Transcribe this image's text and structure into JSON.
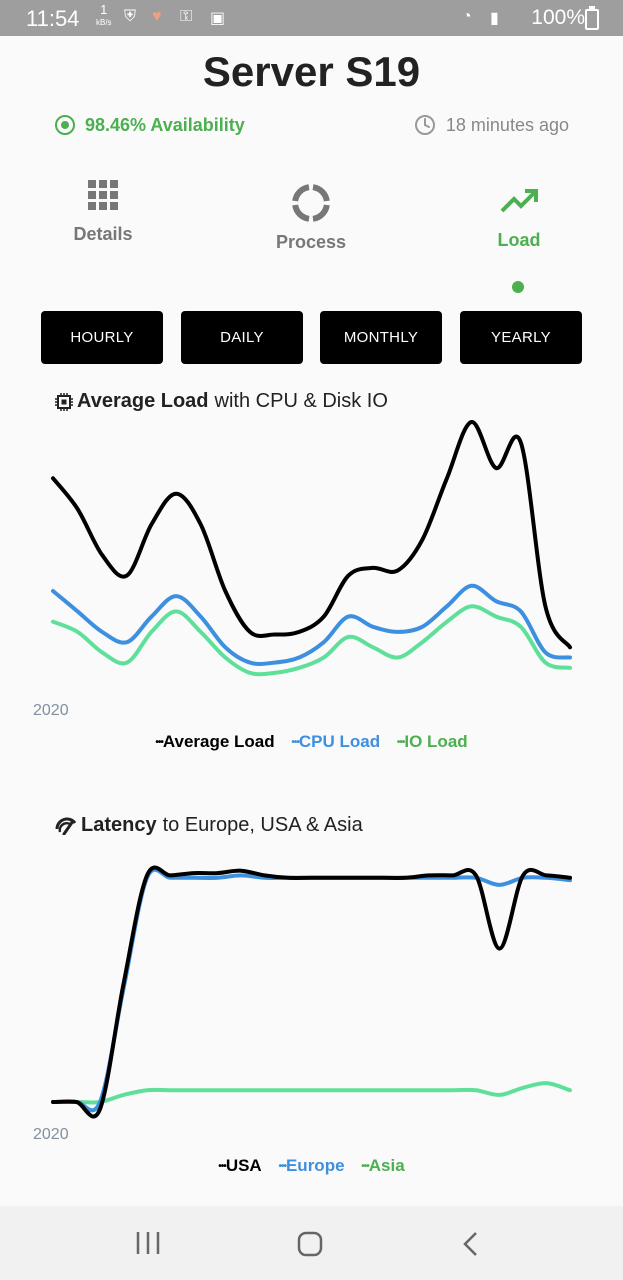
{
  "status_bar": {
    "time": "11:54",
    "data_rate": "1",
    "data_unit": "kB/s",
    "battery": "100%"
  },
  "header": {
    "title": "Server S19",
    "availability": "98.46% Availability",
    "updated": "18 minutes ago"
  },
  "tabs": [
    {
      "label": "Details",
      "icon": "grid-icon"
    },
    {
      "label": "Process",
      "icon": "donut-icon"
    },
    {
      "label": "Load",
      "icon": "trending-up-icon",
      "active": true
    }
  ],
  "ranges": [
    "HOURLY",
    "DAILY",
    "MONTHLY",
    "YEARLY"
  ],
  "colors": {
    "accent": "#4caf50",
    "average_load": "#000000",
    "cpu_load": "#3d8fe0",
    "io_load": "#5ee09a",
    "usa": "#000000",
    "europe": "#3d8fe0",
    "asia": "#5ee09a"
  },
  "load_chart": {
    "title_bold": "Average Load",
    "title_rest": "with CPU & Disk IO",
    "x_label": "2020",
    "legend": [
      "Average Load",
      "CPU Load",
      "IO Load"
    ]
  },
  "latency_chart": {
    "title_bold": "Latency",
    "title_rest": "to Europe, USA & Asia",
    "x_label": "2020",
    "legend": [
      "USA",
      "Europe",
      "Asia"
    ]
  },
  "chart_data": [
    {
      "type": "line",
      "title": "Average Load with CPU & Disk IO",
      "x": [
        0,
        1,
        2,
        3,
        4,
        5,
        6,
        7,
        8,
        9,
        10,
        11,
        12,
        13,
        14,
        15,
        16,
        17,
        18,
        19,
        20,
        21
      ],
      "xlabel": "2020",
      "grid": false,
      "legend_placement": "bottom",
      "ylim": [
        0,
        100
      ],
      "series": [
        {
          "name": "Average Load",
          "values": [
            78,
            66,
            48,
            40,
            60,
            72,
            60,
            34,
            18,
            17,
            18,
            24,
            40,
            43,
            42,
            54,
            78,
            100,
            82,
            92,
            28,
            12
          ]
        },
        {
          "name": "CPU Load",
          "values": [
            34,
            26,
            18,
            14,
            24,
            32,
            24,
            12,
            6,
            6,
            8,
            14,
            24,
            20,
            18,
            20,
            28,
            36,
            30,
            26,
            10,
            8
          ]
        },
        {
          "name": "IO Load",
          "values": [
            22,
            18,
            10,
            6,
            18,
            26,
            18,
            8,
            2,
            2,
            4,
            8,
            16,
            12,
            8,
            14,
            22,
            28,
            24,
            20,
            6,
            4
          ]
        }
      ]
    },
    {
      "type": "line",
      "title": "Latency to Europe, USA & Asia",
      "x": [
        0,
        1,
        2,
        3,
        4,
        5,
        6,
        7,
        8,
        9,
        10,
        11,
        12,
        13,
        14,
        15,
        16,
        17,
        18,
        19,
        20,
        21,
        22
      ],
      "xlabel": "2020",
      "grid": false,
      "legend_placement": "bottom",
      "ylim": [
        0,
        100
      ],
      "series": [
        {
          "name": "USA",
          "values": [
            0,
            0,
            -3,
            50,
            96,
            96,
            97,
            97,
            98,
            96,
            95,
            95,
            95,
            95,
            95,
            95,
            96,
            96,
            96,
            65,
            96,
            96,
            95
          ]
        },
        {
          "name": "Europe",
          "values": [
            0,
            0,
            0,
            48,
            95,
            95,
            95,
            95,
            96,
            95,
            95,
            95,
            95,
            95,
            95,
            95,
            95,
            95,
            95,
            92,
            95,
            95,
            94
          ]
        },
        {
          "name": "Asia",
          "values": [
            0,
            0,
            0,
            3,
            5,
            5,
            5,
            5,
            5,
            5,
            5,
            5,
            5,
            5,
            5,
            5,
            5,
            5,
            5,
            3,
            6,
            8,
            5
          ]
        }
      ]
    }
  ]
}
